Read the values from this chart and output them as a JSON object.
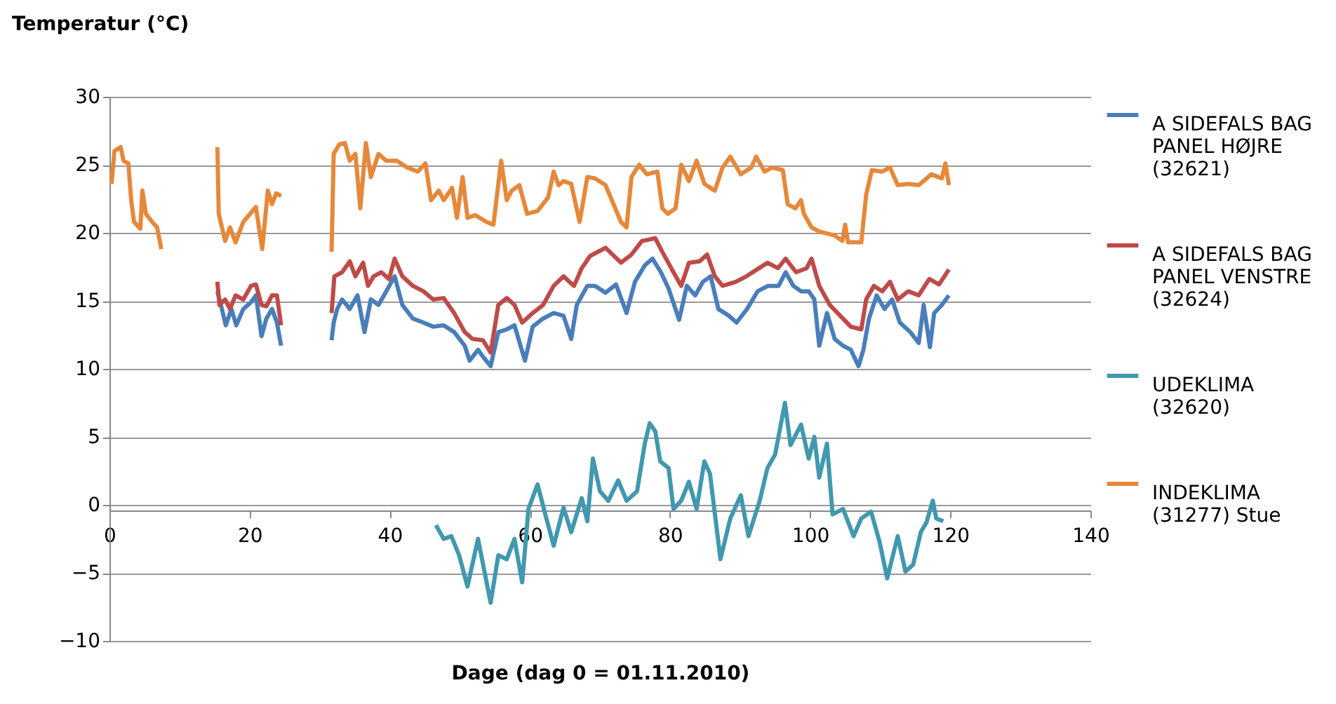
{
  "chart_data": {
    "type": "line",
    "xlabel": "Dage (dag 0 = 01.11.2010)",
    "ylabel": "Temperatur (°C)",
    "xlim": [
      0,
      140
    ],
    "xticks": [
      0,
      20,
      40,
      60,
      80,
      100,
      120,
      140
    ],
    "ylim": [
      -10,
      30
    ],
    "yticks": [
      -10,
      -5,
      0,
      5,
      10,
      15,
      20,
      25,
      30
    ],
    "grid": "y",
    "legend": "right",
    "marker": "none",
    "line_style": "solid",
    "series": [
      {
        "name": "A SIDEFALS BAG PANEL HØJRE (32621)",
        "color": "#4a7ebb",
        "x": [
          15.4,
          15.9,
          16.6,
          17.4,
          18.1,
          19.1,
          20.2,
          20.9,
          21.7,
          22.4,
          23.2,
          23.9,
          24.5,
          28,
          31.7,
          32.0,
          32.5,
          33.2,
          34.3,
          35.4,
          36.4,
          37.3,
          38.4,
          39.5,
          40.7,
          41.8,
          43.3,
          44.8,
          46.2,
          47.7,
          49.2,
          50.7,
          51.4,
          52.6,
          53.3,
          54.4,
          55.5,
          56.7,
          57.8,
          59.3,
          60.4,
          61.9,
          63.4,
          64.8,
          65.9,
          66.7,
          68.2,
          69.3,
          70.8,
          72.3,
          73.8,
          75.0,
          76.4,
          77.5,
          78.7,
          79.8,
          81.3,
          82.4,
          83.6,
          84.7,
          85.8,
          86.9,
          88.4,
          89.5,
          91.0,
          92.5,
          94.0,
          95.5,
          96.5,
          97.6,
          98.7,
          99.8,
          100.6,
          101.3,
          102.4,
          103.5,
          104.7,
          105.8,
          106.9,
          107.6,
          108.4,
          109.5,
          110.6,
          111.7,
          112.8,
          114.3,
          115.5,
          116.2,
          117.1,
          117.7,
          118.8,
          119.8
        ],
        "values": [
          15.7,
          14.7,
          13.2,
          14.4,
          13.2,
          14.4,
          14.9,
          15.4,
          12.4,
          13.7,
          14.4,
          13.4,
          11.7,
          null,
          12.1,
          13.4,
          14.4,
          15.1,
          14.4,
          15.4,
          12.7,
          15.1,
          14.7,
          15.7,
          16.8,
          14.7,
          13.7,
          13.4,
          13.1,
          13.2,
          12.7,
          11.7,
          10.6,
          11.4,
          10.9,
          10.2,
          12.7,
          12.9,
          13.2,
          10.6,
          13.1,
          13.7,
          14.1,
          13.9,
          12.2,
          14.7,
          16.1,
          16.1,
          15.6,
          16.2,
          14.1,
          16.4,
          17.6,
          18.1,
          17.1,
          15.9,
          13.6,
          16.1,
          15.4,
          16.4,
          16.8,
          14.4,
          13.9,
          13.4,
          14.4,
          15.7,
          16.1,
          16.1,
          17.1,
          16.1,
          15.7,
          15.7,
          15.1,
          11.7,
          14.1,
          12.2,
          11.7,
          11.4,
          10.2,
          11.4,
          13.7,
          15.4,
          14.4,
          15.1,
          13.4,
          12.7,
          11.9,
          14.7,
          11.6,
          14.1,
          14.7,
          15.4
        ]
      },
      {
        "name": "A SIDEFALS BAG PANEL VENSTRE (32624)",
        "color": "#be4b48",
        "x": [
          15.4,
          15.7,
          16.5,
          17.2,
          18.0,
          19.1,
          20.2,
          20.9,
          21.7,
          22.4,
          23.2,
          23.9,
          24.5,
          28,
          31.7,
          32.1,
          33.2,
          34.3,
          35.1,
          36.2,
          36.9,
          37.7,
          38.8,
          39.9,
          40.7,
          41.8,
          43.3,
          44.8,
          46.2,
          47.7,
          49.2,
          50.7,
          51.8,
          53.3,
          54.4,
          55.5,
          56.7,
          57.8,
          58.9,
          60.4,
          61.9,
          63.4,
          64.8,
          66.3,
          67.4,
          68.6,
          70.8,
          73.0,
          74.5,
          76.0,
          77.9,
          78.9,
          80.5,
          81.6,
          82.7,
          84.2,
          85.3,
          86.4,
          87.5,
          89.4,
          90.9,
          92.4,
          93.9,
          95.4,
          96.5,
          98.0,
          99.5,
          100.2,
          101.3,
          102.8,
          104.3,
          105.8,
          107.3,
          108.0,
          109.1,
          110.3,
          111.4,
          112.5,
          114.0,
          115.5,
          117.0,
          118.4,
          119.8
        ],
        "values": [
          16.4,
          14.7,
          15.1,
          14.4,
          15.4,
          15.1,
          16.1,
          16.2,
          14.7,
          14.6,
          15.4,
          15.4,
          13.2,
          null,
          14.1,
          16.8,
          17.1,
          17.9,
          16.8,
          17.8,
          16.1,
          16.8,
          17.1,
          16.6,
          18.1,
          16.8,
          16.1,
          15.7,
          15.1,
          15.2,
          14.1,
          12.7,
          12.2,
          12.1,
          11.2,
          14.7,
          15.2,
          14.7,
          13.4,
          14.1,
          14.7,
          16.1,
          16.8,
          16.1,
          17.4,
          18.3,
          18.9,
          17.8,
          18.4,
          19.4,
          19.6,
          18.6,
          17.1,
          16.1,
          17.8,
          17.9,
          18.4,
          16.8,
          16.1,
          16.4,
          16.8,
          17.3,
          17.8,
          17.4,
          18.1,
          17.1,
          17.4,
          18.1,
          16.1,
          14.7,
          13.9,
          13.1,
          12.9,
          15.1,
          16.1,
          15.7,
          16.4,
          15.1,
          15.7,
          15.4,
          16.6,
          16.2,
          17.3
        ]
      },
      {
        "name": "UDEKLIMA (32620)",
        "color": "#4198af",
        "x": [
          46.6,
          47.7,
          48.8,
          49.9,
          51.1,
          52.6,
          54.4,
          55.5,
          56.7,
          57.8,
          58.9,
          59.8,
          61.1,
          62.2,
          63.4,
          64.8,
          65.9,
          67.4,
          68.2,
          69.0,
          70.0,
          71.2,
          72.6,
          73.8,
          75.3,
          76.4,
          77.1,
          77.9,
          78.6,
          79.8,
          80.5,
          81.6,
          82.7,
          83.8,
          84.9,
          85.7,
          87.2,
          88.6,
          90.1,
          91.2,
          92.8,
          93.9,
          95.0,
          96.4,
          97.2,
          98.7,
          99.8,
          100.6,
          101.3,
          102.4,
          103.2,
          104.7,
          106.2,
          107.3,
          108.7,
          109.9,
          111.0,
          112.5,
          113.6,
          114.7,
          115.8,
          116.6,
          117.5,
          118.0,
          119.0
        ],
        "values": [
          -1.5,
          -2.5,
          -2.3,
          -3.7,
          -6.0,
          -2.5,
          -7.2,
          -3.7,
          -4.0,
          -2.5,
          -5.7,
          -0.3,
          1.5,
          -0.7,
          -3.0,
          -0.2,
          -2.0,
          0.5,
          -1.2,
          3.4,
          1.0,
          0.3,
          1.8,
          0.3,
          1.0,
          4.5,
          6.0,
          5.4,
          3.2,
          2.7,
          -0.3,
          0.3,
          1.7,
          -0.3,
          3.2,
          2.3,
          -4.0,
          -1.0,
          0.7,
          -2.3,
          0.3,
          2.7,
          3.7,
          7.5,
          4.4,
          5.9,
          3.4,
          5.0,
          2.0,
          4.5,
          -0.7,
          -0.3,
          -2.3,
          -1.0,
          -0.5,
          -2.7,
          -5.4,
          -2.3,
          -4.9,
          -4.4,
          -2.0,
          -1.3,
          0.3,
          -1.0,
          -1.2
        ]
      },
      {
        "name": "INDEKLIMA (31277) Stue",
        "color": "#e6883a",
        "x": [
          0.3,
          0.7,
          1.6,
          2.0,
          2.7,
          3.1,
          3.5,
          4.4,
          4.7,
          5.2,
          6.1,
          6.8,
          7.4,
          11,
          15.4,
          15.6,
          16.5,
          17.2,
          18.0,
          19.1,
          20.9,
          21.8,
          22.6,
          23.2,
          23.8,
          24.5,
          28,
          31.7,
          32.0,
          32.8,
          33.6,
          34.3,
          35.1,
          35.8,
          36.6,
          37.3,
          38.4,
          39.5,
          41.0,
          42.5,
          44.0,
          45.1,
          45.9,
          47.0,
          47.7,
          48.9,
          49.6,
          50.4,
          51.1,
          52.2,
          53.8,
          54.8,
          55.9,
          56.7,
          57.4,
          58.5,
          59.6,
          61.1,
          62.6,
          63.4,
          64.1,
          64.8,
          65.9,
          67.1,
          68.2,
          69.3,
          70.8,
          73.0,
          73.8,
          74.5,
          75.6,
          76.7,
          78.2,
          78.9,
          79.7,
          80.8,
          81.6,
          82.7,
          83.8,
          84.9,
          86.4,
          87.5,
          88.6,
          90.1,
          91.6,
          92.3,
          93.5,
          94.6,
          96.1,
          96.8,
          97.9,
          98.7,
          99.1,
          100.2,
          101.3,
          103.5,
          104.6,
          105.0,
          105.4,
          107.3,
          108.0,
          108.8,
          110.3,
          111.4,
          112.5,
          114.0,
          115.5,
          117.3,
          118.8,
          119.3,
          119.8
        ],
        "values": [
          23.6,
          26.0,
          26.3,
          25.3,
          25.1,
          22.4,
          20.8,
          20.3,
          23.1,
          21.4,
          20.8,
          20.4,
          18.8,
          null,
          26.3,
          21.4,
          19.4,
          20.4,
          19.3,
          20.8,
          21.9,
          18.8,
          23.1,
          22.1,
          22.9,
          22.7,
          null,
          18.6,
          25.8,
          26.5,
          26.6,
          25.3,
          25.8,
          21.8,
          26.6,
          24.1,
          25.8,
          25.3,
          25.3,
          24.8,
          24.5,
          25.1,
          22.4,
          23.1,
          22.4,
          23.3,
          21.1,
          24.1,
          21.1,
          21.3,
          20.8,
          20.6,
          25.3,
          22.4,
          23.1,
          23.5,
          21.4,
          21.6,
          22.6,
          24.5,
          23.5,
          23.8,
          23.6,
          20.8,
          24.1,
          24.0,
          23.5,
          20.8,
          20.4,
          24.1,
          25.0,
          24.3,
          24.5,
          21.8,
          21.4,
          21.8,
          25.0,
          23.8,
          25.3,
          23.6,
          23.1,
          24.8,
          25.6,
          24.3,
          24.8,
          25.6,
          24.5,
          24.8,
          24.6,
          22.1,
          21.8,
          22.4,
          21.4,
          20.4,
          20.1,
          19.8,
          19.4,
          20.6,
          19.3,
          19.3,
          22.8,
          24.6,
          24.5,
          24.8,
          23.5,
          23.6,
          23.5,
          24.3,
          24.0,
          25.1,
          23.5
        ]
      }
    ]
  }
}
